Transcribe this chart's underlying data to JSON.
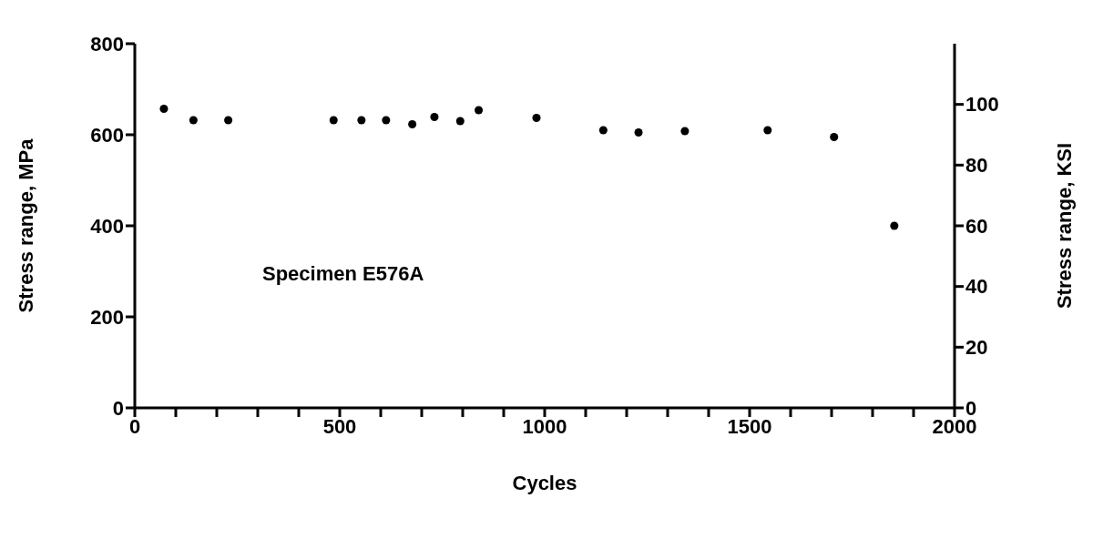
{
  "chart_data": {
    "type": "scatter",
    "xlabel": "Cycles",
    "ylabel": "Stress range, MPa",
    "y2label": "Stress range, KSI",
    "annotations": [
      "Specimen E576A"
    ],
    "x": [
      71,
      143,
      228,
      485,
      553,
      613,
      677,
      731,
      794,
      839,
      980,
      1143,
      1229,
      1342,
      1544,
      1706,
      1853
    ],
    "series": [
      {
        "color": "#000000",
        "values": [
          657,
          632,
          632,
          632,
          632,
          632,
          623,
          639,
          630,
          654,
          637,
          610,
          605,
          608,
          610,
          595,
          400
        ]
      }
    ],
    "marker": "circle",
    "xlim": [
      0,
      2000
    ],
    "xticks": [
      0,
      {
        "value": 100,
        "label": null
      },
      {
        "value": 200,
        "label": null
      },
      {
        "value": 300,
        "label": null
      },
      {
        "value": 400,
        "label": null
      },
      500,
      {
        "value": 600,
        "label": null
      },
      {
        "value": 700,
        "label": null
      },
      {
        "value": 800,
        "label": null
      },
      {
        "value": 900,
        "label": null
      },
      1000,
      {
        "value": 1100,
        "label": null
      },
      {
        "value": 1200,
        "label": null
      },
      {
        "value": 1300,
        "label": null
      },
      {
        "value": 1400,
        "label": null
      },
      1500,
      {
        "value": 1600,
        "label": null
      },
      {
        "value": 1700,
        "label": null
      },
      {
        "value": 1800,
        "label": null
      },
      {
        "value": 1900,
        "label": null
      },
      2000
    ],
    "ylim": [
      0,
      800
    ],
    "yticks": [
      0,
      200,
      400,
      600,
      800
    ],
    "y2lim": [
      0,
      120
    ],
    "y2ticks": [
      0,
      20,
      40,
      60,
      80,
      100
    ]
  }
}
